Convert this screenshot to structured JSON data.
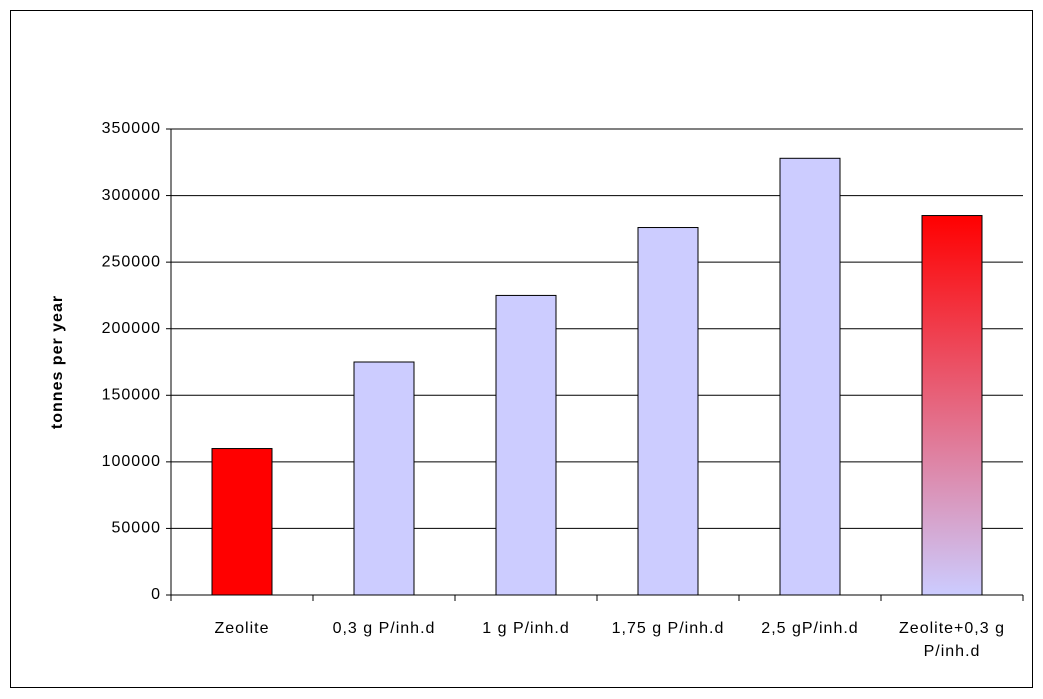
{
  "chart_data": {
    "type": "bar",
    "y_label": "tonnes per year",
    "categories": [
      "Zeolite",
      "0,3 g P/inh.d",
      "1 g P/inh.d",
      "1,75 g P/inh.d",
      "2,5 gP/inh.d",
      "Zeolite+0,3 g P/inh.d"
    ],
    "values": [
      110000,
      175000,
      225000,
      276000,
      328000,
      285000
    ],
    "colors": [
      "#ff0000",
      "#ccccff",
      "#ccccff",
      "#ccccff",
      "#ccccff",
      [
        "#ff0000",
        "#ccccff"
      ]
    ],
    "ylim": [
      0,
      350000
    ],
    "yticks": [
      0,
      50000,
      100000,
      150000,
      200000,
      250000,
      300000,
      350000
    ],
    "grid": true
  }
}
